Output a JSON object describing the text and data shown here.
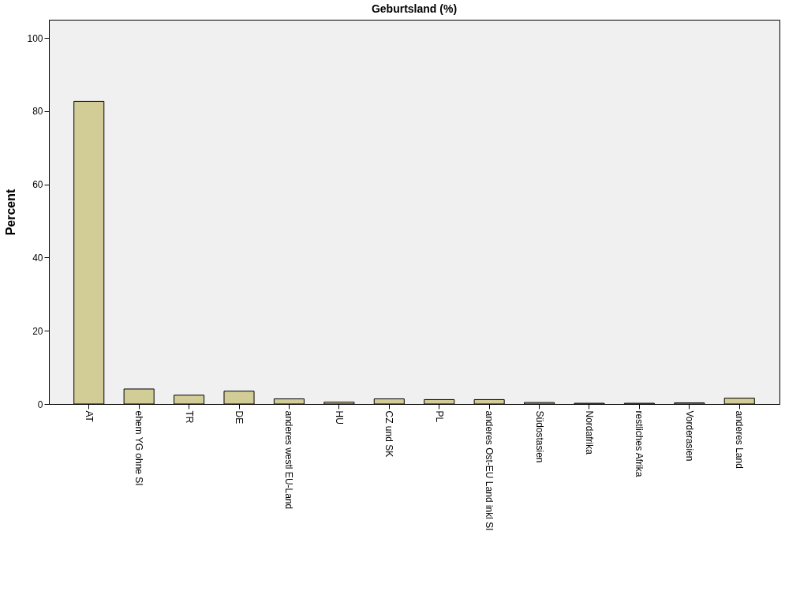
{
  "chart_data": {
    "type": "bar",
    "title": "Geburtsland (%)",
    "ylabel": "Percent",
    "categories": [
      "AT",
      "ehem YG ohne SI",
      "TR",
      "DE",
      "anderes westl EU-Land",
      "HU",
      "CZ und SK",
      "PL",
      "anderes Ost-EU Land inkl SI",
      "Südostasien",
      "Nordafrika",
      "restliches Afrika",
      "Vorderasien",
      "anderes Land"
    ],
    "values": [
      82.7,
      4.1,
      2.4,
      3.5,
      1.4,
      0.5,
      1.4,
      1.2,
      1.2,
      0.4,
      0.2,
      0.2,
      0.3,
      1.6
    ],
    "color": "#d2cd96",
    "ylim": [
      0,
      105
    ],
    "yticks": [
      0,
      20,
      40,
      60,
      80,
      100
    ],
    "grid": false
  }
}
